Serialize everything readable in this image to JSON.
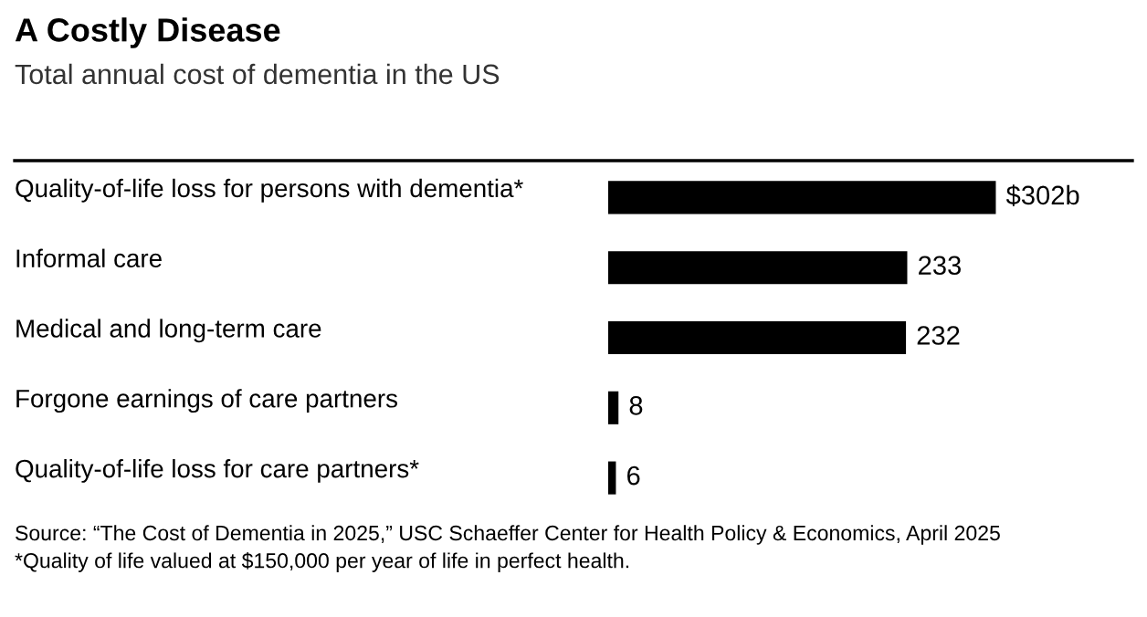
{
  "chart_data": {
    "type": "bar",
    "orientation": "horizontal",
    "title": "A Costly Disease",
    "subtitle": "Total annual cost of dementia in the US",
    "categories": [
      "Quality-of-life loss for persons with dementia*",
      "Informal care",
      "Medical and long-term care",
      "Forgone earnings of care partners",
      "Quality-of-life loss for care partners*"
    ],
    "values": [
      302,
      233,
      232,
      8,
      6
    ],
    "color": "#000000",
    "value_labels": [
      "$302b",
      "233",
      "232",
      "8",
      "6"
    ],
    "annotations": [
      "Source: “The Cost of Dementia in 2025,” USC Schaeffer Center for Health Policy & Economics, April 2025",
      "*Quality of life valued at $150,000 per year of life in perfect health."
    ]
  }
}
